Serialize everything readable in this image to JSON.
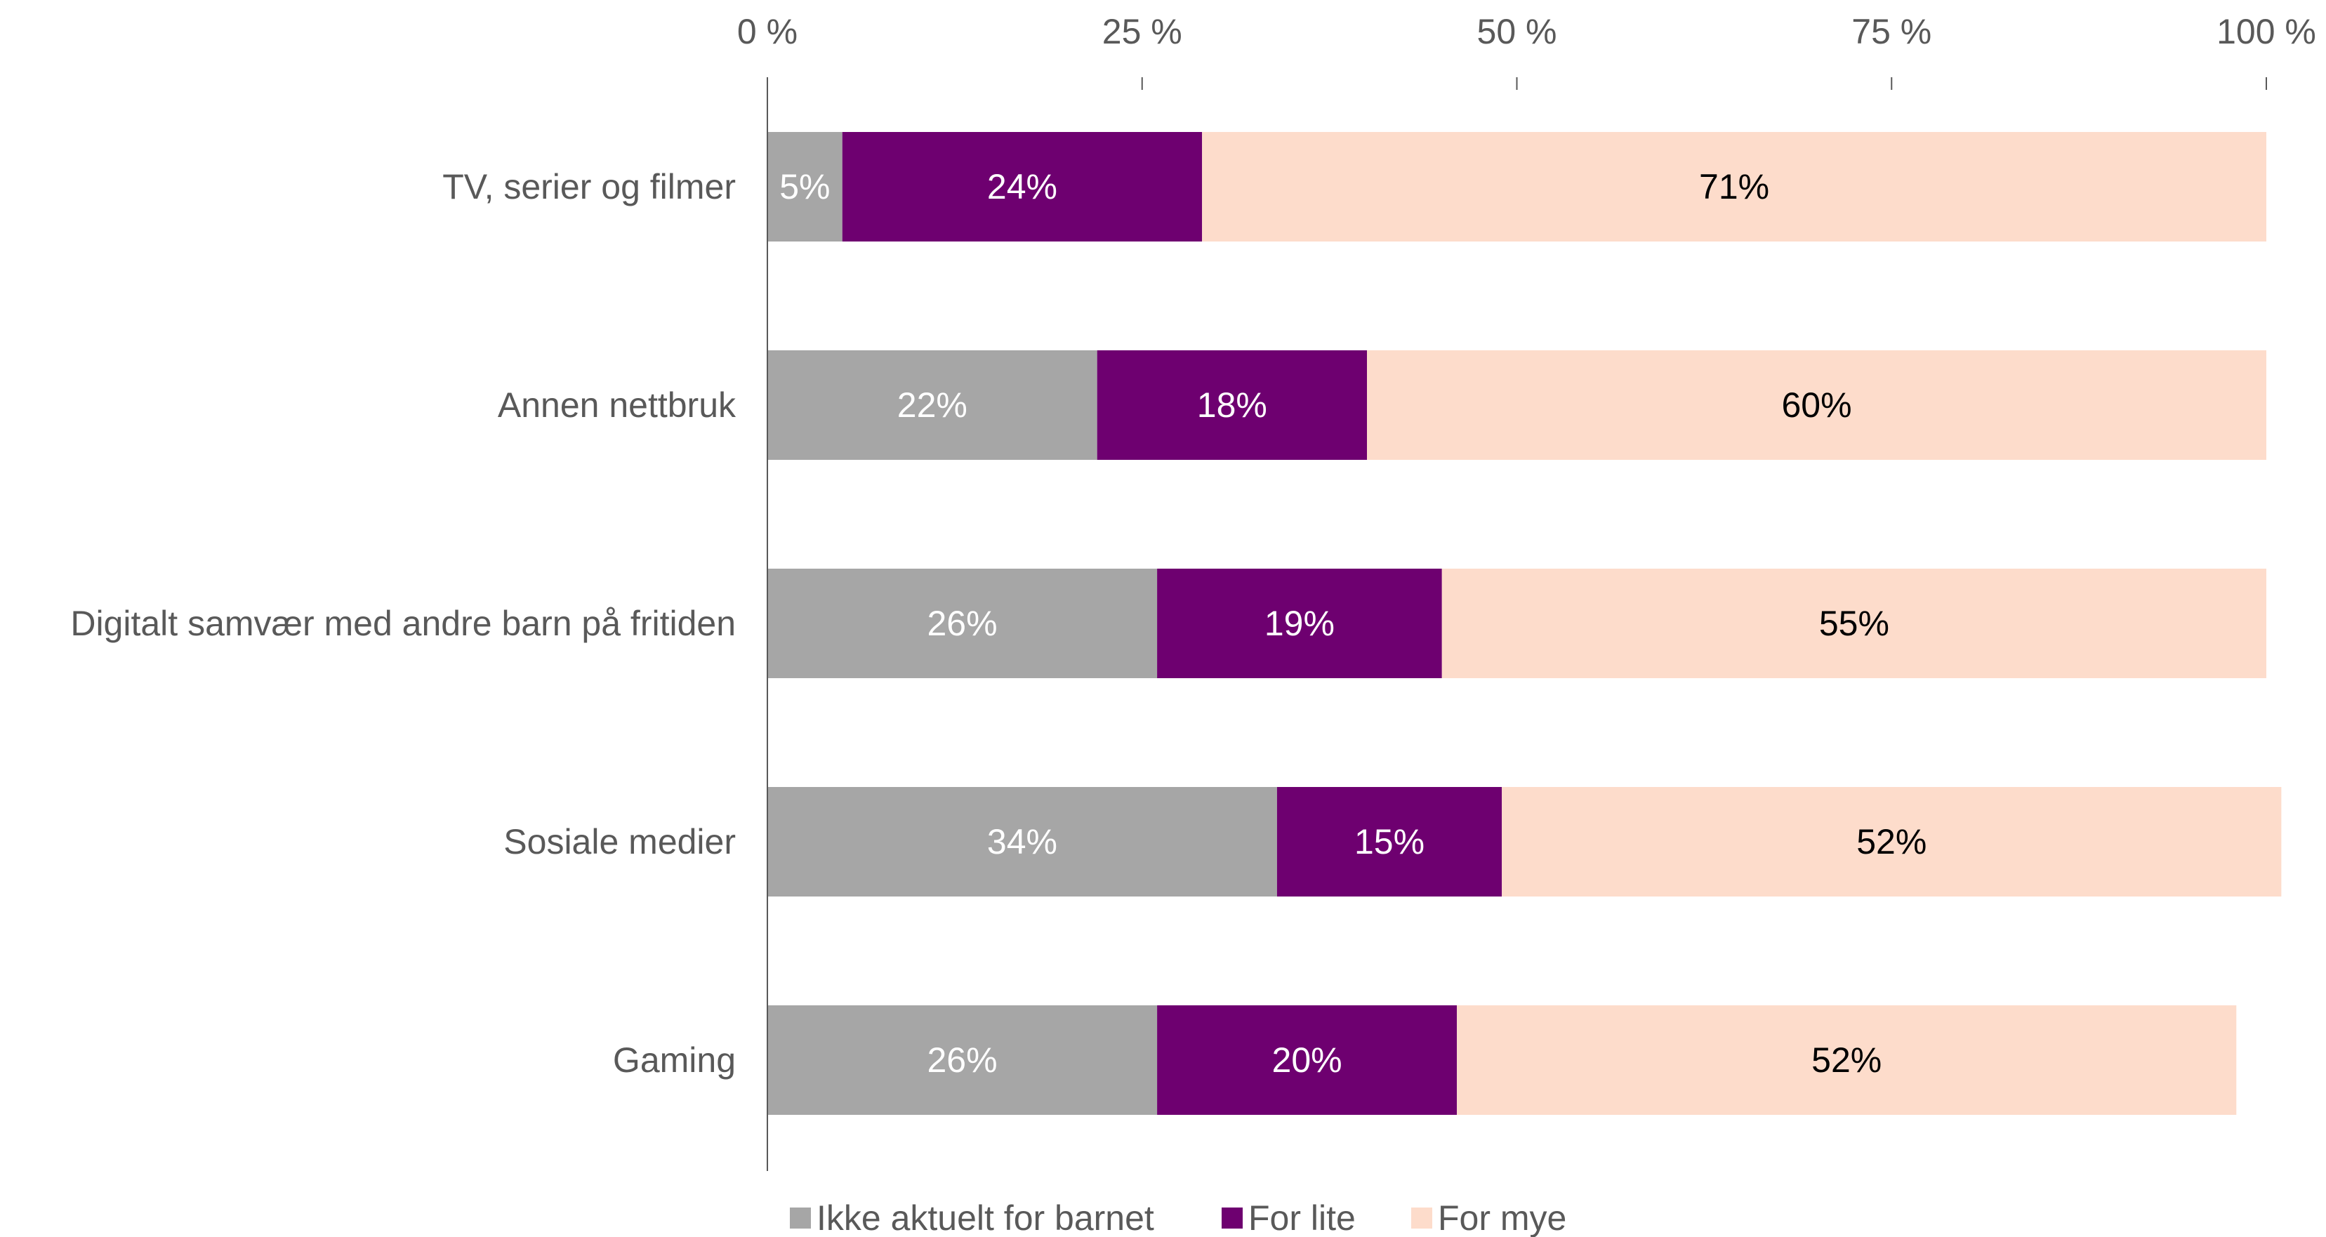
{
  "chart_data": {
    "type": "bar",
    "orientation": "horizontal",
    "stacked": true,
    "categories": [
      "TV, serier og filmer",
      "Annen nettbruk",
      "Digitalt samvær med andre barn på fritiden",
      "Sosiale medier",
      "Gaming"
    ],
    "series": [
      {
        "name": "Ikke aktuelt for barnet",
        "color": "#a6a6a6",
        "label_color": "#ffffff",
        "values": [
          5,
          22,
          26,
          34,
          26
        ]
      },
      {
        "name": "For lite",
        "color": "#6e0070",
        "label_color": "#ffffff",
        "values": [
          24,
          18,
          19,
          15,
          20
        ]
      },
      {
        "name": "For mye",
        "color": "#fddccb",
        "label_color": "#000000",
        "values": [
          71,
          60,
          55,
          52,
          52
        ]
      }
    ],
    "x_ticks": [
      "0 %",
      "25 %",
      "50 %",
      "75 %",
      "100 %"
    ],
    "xlim": [
      0,
      100
    ],
    "x_axis_position": "top",
    "data_label_suffix": "%",
    "legend_position": "bottom",
    "grid": false
  }
}
